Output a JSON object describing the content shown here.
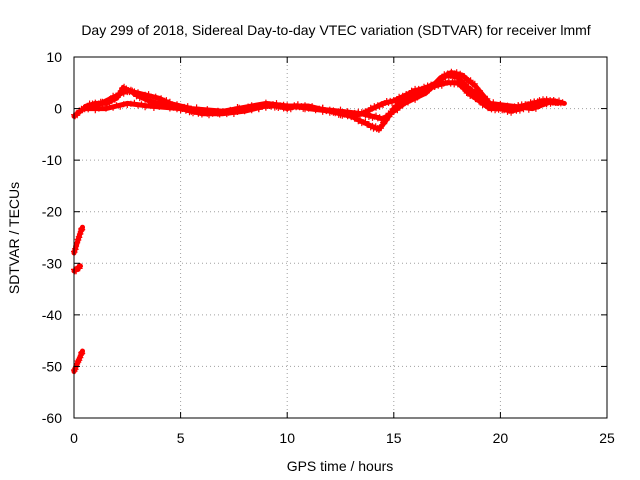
{
  "chart_data": {
    "type": "scatter",
    "title": "Day 299 of 2018, Sidereal Day-to-day VTEC variation (SDTVAR) for receiver lmmf",
    "xlabel": "GPS time / hours",
    "ylabel": "SDTVAR / TECUs",
    "xlim": [
      0,
      25
    ],
    "ylim": [
      -60,
      10
    ],
    "xticks": [
      0,
      5,
      10,
      15,
      20,
      25
    ],
    "yticks": [
      10,
      0,
      -10,
      -20,
      -30,
      -40,
      -50,
      -60
    ],
    "grid": true,
    "series": [
      {
        "name": "SDTVAR",
        "color": "#ff0000",
        "marker": "plus",
        "tracks": [
          [
            [
              0.0,
              -1.5
            ],
            [
              0.3,
              -0.5
            ],
            [
              0.6,
              0.5
            ],
            [
              1.0,
              1.0
            ],
            [
              1.5,
              1.0
            ],
            [
              2.0,
              2.0
            ],
            [
              2.3,
              4.0
            ],
            [
              2.6,
              3.5
            ],
            [
              3.0,
              2.5
            ],
            [
              3.5,
              1.5
            ],
            [
              4.0,
              1.0
            ],
            [
              4.5,
              0.5
            ],
            [
              5.0,
              0.0
            ],
            [
              5.5,
              -0.5
            ],
            [
              6.0,
              -1.0
            ],
            [
              7.0,
              -1.0
            ],
            [
              8.0,
              -0.5
            ],
            [
              9.0,
              0.5
            ],
            [
              9.5,
              0.5
            ],
            [
              10.0,
              0.0
            ],
            [
              10.5,
              0.5
            ],
            [
              11.0,
              0.0
            ],
            [
              12.0,
              -0.5
            ],
            [
              12.5,
              -1.0
            ],
            [
              13.0,
              -1.5
            ],
            [
              13.5,
              -1.0
            ],
            [
              14.0,
              0.0
            ],
            [
              14.5,
              1.0
            ],
            [
              15.0,
              1.5
            ],
            [
              15.5,
              2.5
            ],
            [
              16.0,
              3.5
            ],
            [
              16.5,
              4.0
            ],
            [
              17.0,
              5.0
            ],
            [
              17.5,
              6.5
            ],
            [
              18.0,
              6.0
            ],
            [
              18.5,
              4.0
            ],
            [
              19.0,
              2.5
            ],
            [
              19.5,
              0.5
            ],
            [
              20.0,
              0.0
            ],
            [
              20.5,
              0.0
            ],
            [
              21.0,
              0.5
            ],
            [
              21.5,
              1.0
            ],
            [
              22.0,
              1.5
            ],
            [
              22.5,
              1.5
            ],
            [
              23.0,
              1.0
            ]
          ],
          [
            [
              0.5,
              0.0
            ],
            [
              1.5,
              0.0
            ],
            [
              2.5,
              1.0
            ],
            [
              3.5,
              0.5
            ],
            [
              5.0,
              0.0
            ],
            [
              6.5,
              -1.0
            ],
            [
              8.0,
              0.0
            ],
            [
              9.0,
              0.5
            ],
            [
              10.0,
              0.5
            ],
            [
              11.0,
              0.5
            ],
            [
              12.0,
              -0.5
            ],
            [
              13.0,
              -1.5
            ],
            [
              13.5,
              -2.5
            ],
            [
              14.0,
              -3.5
            ],
            [
              14.3,
              -4.0
            ],
            [
              14.6,
              -2.5
            ],
            [
              15.0,
              0.0
            ],
            [
              15.5,
              2.0
            ],
            [
              16.0,
              3.0
            ],
            [
              16.5,
              3.5
            ],
            [
              17.0,
              4.5
            ],
            [
              17.5,
              5.0
            ],
            [
              18.0,
              5.0
            ],
            [
              18.5,
              3.0
            ],
            [
              19.0,
              1.5
            ],
            [
              19.5,
              0.0
            ],
            [
              20.0,
              0.0
            ],
            [
              20.5,
              -0.5
            ],
            [
              21.0,
              0.0
            ],
            [
              21.5,
              1.0
            ],
            [
              22.0,
              1.5
            ],
            [
              22.7,
              1.0
            ]
          ],
          [
            [
              1.0,
              0.5
            ],
            [
              2.0,
              2.5
            ],
            [
              2.5,
              3.5
            ],
            [
              3.0,
              3.0
            ],
            [
              4.0,
              2.0
            ],
            [
              4.5,
              1.0
            ],
            [
              5.5,
              0.0
            ],
            [
              7.0,
              -0.5
            ],
            [
              9.0,
              1.0
            ],
            [
              10.0,
              0.5
            ],
            [
              12.5,
              -0.5
            ],
            [
              13.5,
              -1.0
            ],
            [
              14.0,
              -1.5
            ],
            [
              14.5,
              -2.0
            ],
            [
              15.0,
              -0.5
            ],
            [
              15.5,
              1.0
            ],
            [
              16.5,
              3.0
            ],
            [
              17.2,
              6.0
            ],
            [
              17.7,
              7.0
            ],
            [
              18.2,
              6.5
            ],
            [
              18.8,
              4.5
            ],
            [
              19.5,
              1.0
            ],
            [
              20.5,
              0.5
            ],
            [
              21.5,
              0.0
            ],
            [
              22.5,
              1.5
            ]
          ],
          [
            [
              0.0,
              -28.0
            ],
            [
              0.15,
              -26.0
            ],
            [
              0.3,
              -24.0
            ],
            [
              0.4,
              -23.0
            ]
          ],
          [
            [
              0.0,
              -31.5
            ],
            [
              0.2,
              -31.0
            ],
            [
              0.3,
              -30.5
            ]
          ],
          [
            [
              0.0,
              -51.0
            ],
            [
              0.15,
              -49.5
            ],
            [
              0.3,
              -48.0
            ],
            [
              0.4,
              -47.0
            ]
          ]
        ]
      }
    ]
  }
}
